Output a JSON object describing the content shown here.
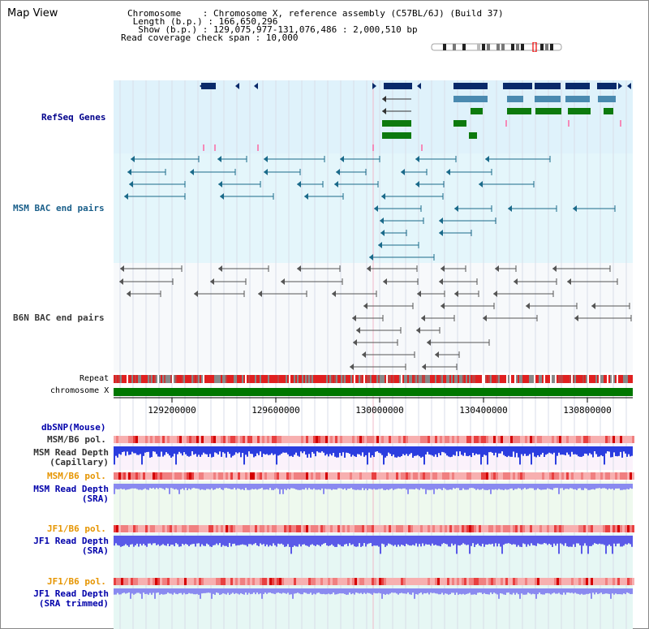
{
  "header": {
    "title": "Map View",
    "info_lines": [
      "Chromosome    : Chromosome X, reference assembly (C57BL/6J) (Build 37)",
      " Length (b.p.) : 166,650,296",
      "  Show (b.p.) : 129,075,977-131,076,486 : 2,000,510 bp",
      "Read coverage check span : 10,000"
    ]
  },
  "tracks": [
    {
      "label": "RefSeq Genes",
      "color": "#00008b"
    },
    {
      "label": "MSM BAC end pairs",
      "color": "#1a5f8a"
    },
    {
      "label": "B6N BAC end pairs",
      "color": "#3a3a3a"
    },
    {
      "label": "Repeat",
      "color": "#000000"
    },
    {
      "label": "chromosome X",
      "color": "#000000"
    },
    {
      "label": "dbSNP(Mouse)",
      "color": "#0000aa"
    },
    {
      "label": "MSM/B6 pol.",
      "color": "#333333"
    },
    {
      "label": "MSM Read Depth\n(Capillary)",
      "color": "#333333"
    },
    {
      "label": "MSM/B6 pol.",
      "color": "#e69500"
    },
    {
      "label": "MSM Read Depth\n(SRA)",
      "color": "#0000aa"
    },
    {
      "label": "JF1/B6 pol.",
      "color": "#e69500"
    },
    {
      "label": "JF1 Read Depth\n(SRA)",
      "color": "#0000aa"
    },
    {
      "label": "JF1/B6 pol.",
      "color": "#e69500"
    },
    {
      "label": "JF1 Read Depth\n(SRA trimmed)",
      "color": "#0000aa"
    }
  ],
  "ruler": {
    "ticks": [
      "129200000",
      "129600000",
      "130000000",
      "130400000",
      "130800000"
    ]
  },
  "colors": {
    "gene_navy": "#0a2a6a",
    "gene_steel": "#4a8ab0",
    "gene_green": "#0d7a0d",
    "bac_teal": "#1a6a8a",
    "depth_blue": "#2b3ddf",
    "depth_light": "#8a8af0",
    "pol_red": "#e83a3a",
    "chrom_green": "#007700"
  }
}
